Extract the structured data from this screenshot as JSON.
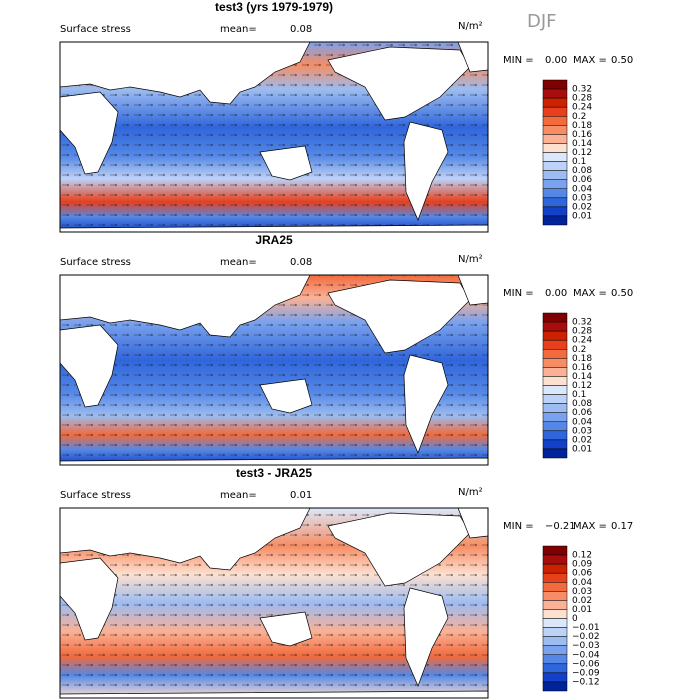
{
  "season": "DJF",
  "panels": [
    {
      "title": "test3 (yrs 1979-1979)",
      "variable": "Surface stress",
      "mean_label": "mean=",
      "mean": "0.08",
      "units": "N/m²",
      "min_label": "MIN =",
      "min": "0.00",
      "max_label": "MAX =",
      "max": "0.50",
      "colorbar": {
        "labels": [
          "0.32",
          "0.28",
          "0.24",
          "0.2",
          "0.18",
          "0.16",
          "0.14",
          "0.12",
          "0.1",
          "0.08",
          "0.06",
          "0.04",
          "0.03",
          "0.02",
          "0.01"
        ],
        "colors": [
          "#7f0000",
          "#a80d0d",
          "#cc2200",
          "#e8401c",
          "#f26a3d",
          "#f78d64",
          "#fbb195",
          "#fde0d0",
          "#dbe8fb",
          "#bcd2f7",
          "#9cbcf2",
          "#7aa2ee",
          "#5588e6",
          "#2f66dc",
          "#1240c8",
          "#00229a"
        ]
      }
    },
    {
      "title": "JRA25",
      "variable": "Surface stress",
      "mean_label": "mean=",
      "mean": "0.08",
      "units": "N/m²",
      "min_label": "MIN =",
      "min": "0.00",
      "max_label": "MAX =",
      "max": "0.50",
      "colorbar": {
        "labels": [
          "0.32",
          "0.28",
          "0.24",
          "0.2",
          "0.18",
          "0.16",
          "0.14",
          "0.12",
          "0.1",
          "0.08",
          "0.06",
          "0.04",
          "0.03",
          "0.02",
          "0.01"
        ],
        "colors": [
          "#7f0000",
          "#a80d0d",
          "#cc2200",
          "#e8401c",
          "#f26a3d",
          "#f78d64",
          "#fbb195",
          "#fde0d0",
          "#dbe8fb",
          "#bcd2f7",
          "#9cbcf2",
          "#7aa2ee",
          "#5588e6",
          "#2f66dc",
          "#1240c8",
          "#00229a"
        ]
      }
    },
    {
      "title": "test3 - JRA25",
      "variable": "Surface stress",
      "mean_label": "mean=",
      "mean": "0.01",
      "units": "N/m²",
      "min_label": "MIN =",
      "min": "−0.21",
      "max_label": "MAX =",
      "max": "0.17",
      "colorbar": {
        "labels": [
          "0.12",
          "0.09",
          "0.06",
          "0.04",
          "0.03",
          "0.02",
          "0.01",
          "0",
          "−0.01",
          "−0.02",
          "−0.03",
          "−0.04",
          "−0.06",
          "−0.09",
          "−0.12"
        ],
        "colors": [
          "#7f0000",
          "#a80d0d",
          "#cc2200",
          "#e8401c",
          "#f26a3d",
          "#f78d64",
          "#fbb195",
          "#fde0d0",
          "#dbe8fb",
          "#bcd2f7",
          "#9cbcf2",
          "#7aa2ee",
          "#5588e6",
          "#2f66dc",
          "#1240c8",
          "#00229a"
        ]
      }
    }
  ]
}
